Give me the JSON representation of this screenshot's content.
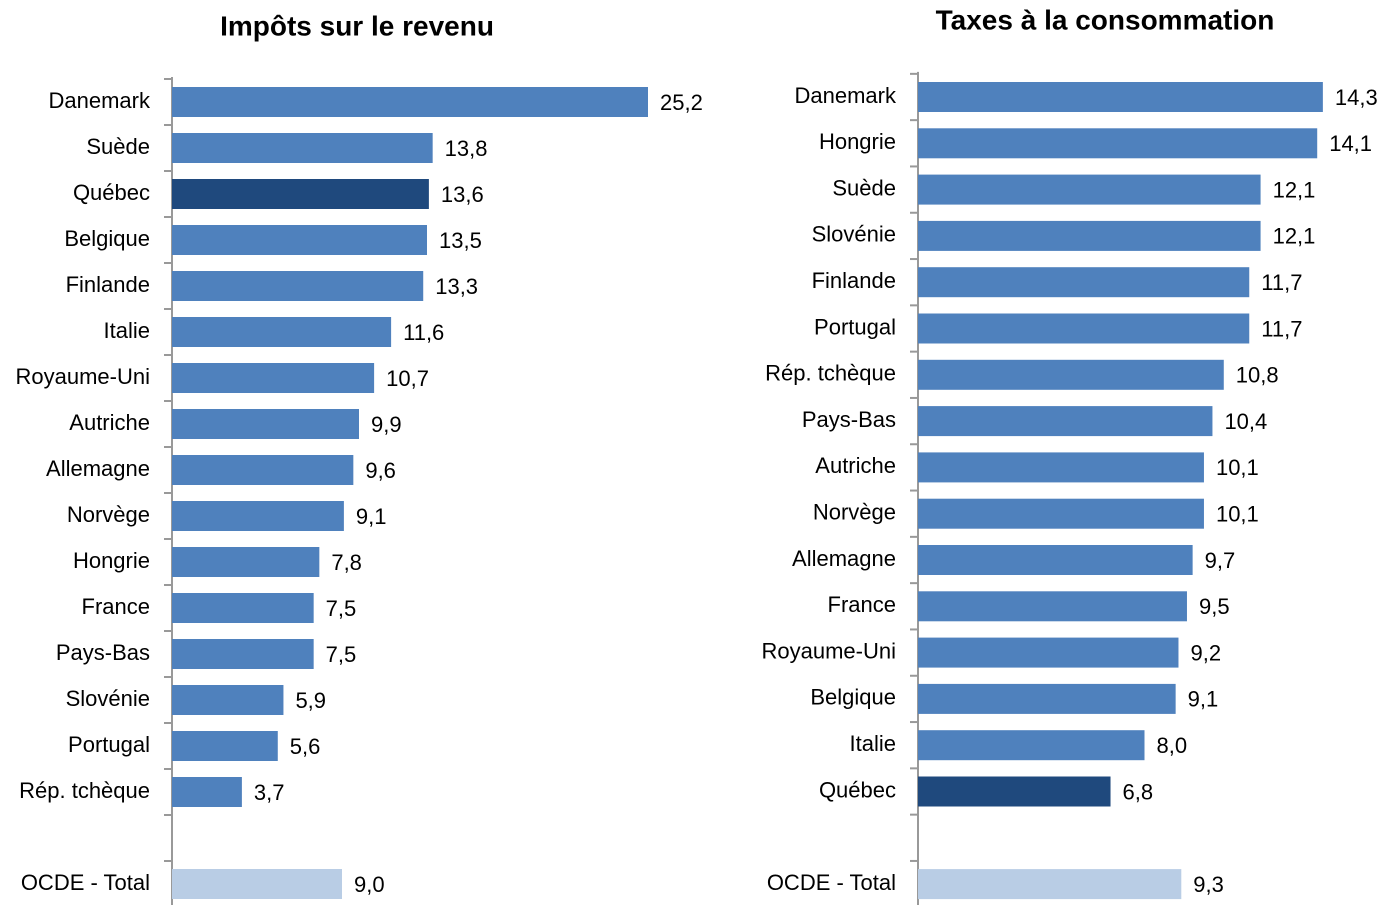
{
  "chart_data": [
    {
      "type": "bar",
      "orientation": "horizontal",
      "title": "Impôts sur le revenu",
      "categories": [
        "Danemark",
        "Suède",
        "Québec",
        "Belgique",
        "Finlande",
        "Italie",
        "Royaume-Uni",
        "Autriche",
        "Allemagne",
        "Norvège",
        "Hongrie",
        "France",
        "Pays-Bas",
        "Slovénie",
        "Portugal",
        "Rép. tchèque",
        null,
        "OCDE - Total"
      ],
      "values": [
        25.2,
        13.8,
        13.6,
        13.5,
        13.3,
        11.6,
        10.7,
        9.9,
        9.6,
        9.1,
        7.8,
        7.5,
        7.5,
        5.9,
        5.6,
        3.7,
        null,
        9.0
      ],
      "value_labels": [
        "25,2",
        "13,8",
        "13,6",
        "13,5",
        "13,3",
        "11,6",
        "10,7",
        "9,9",
        "9,6",
        "9,1",
        "7,8",
        "7,5",
        "7,5",
        "5,9",
        "5,6",
        "3,7",
        null,
        "9,0"
      ],
      "colors": [
        "#4f81bd",
        "#4f81bd",
        "#1f497d",
        "#4f81bd",
        "#4f81bd",
        "#4f81bd",
        "#4f81bd",
        "#4f81bd",
        "#4f81bd",
        "#4f81bd",
        "#4f81bd",
        "#4f81bd",
        "#4f81bd",
        "#4f81bd",
        "#4f81bd",
        "#4f81bd",
        null,
        "#b9cde5"
      ],
      "xlim": [
        0,
        27
      ]
    },
    {
      "type": "bar",
      "orientation": "horizontal",
      "title": "Taxes à la consommation",
      "categories": [
        "Danemark",
        "Hongrie",
        "Suède",
        "Slovénie",
        "Finlande",
        "Portugal",
        "Rép. tchèque",
        "Pays-Bas",
        "Autriche",
        "Norvège",
        "Allemagne",
        "France",
        "Royaume-Uni",
        "Belgique",
        "Italie",
        "Québec",
        null,
        "OCDE - Total"
      ],
      "values": [
        14.3,
        14.1,
        12.1,
        12.1,
        11.7,
        11.7,
        10.8,
        10.4,
        10.1,
        10.1,
        9.7,
        9.5,
        9.2,
        9.1,
        8.0,
        6.8,
        null,
        9.3
      ],
      "value_labels": [
        "14,3",
        "14,1",
        "12,1",
        "12,1",
        "11,7",
        "11,7",
        "10,8",
        "10,4",
        "10,1",
        "10,1",
        "9,7",
        "9,5",
        "9,2",
        "9,1",
        "8,0",
        "6,8",
        null,
        "9,3"
      ],
      "colors": [
        "#4f81bd",
        "#4f81bd",
        "#4f81bd",
        "#4f81bd",
        "#4f81bd",
        "#4f81bd",
        "#4f81bd",
        "#4f81bd",
        "#4f81bd",
        "#4f81bd",
        "#4f81bd",
        "#4f81bd",
        "#4f81bd",
        "#4f81bd",
        "#4f81bd",
        "#1f497d",
        null,
        "#b9cde5"
      ],
      "xlim": [
        0,
        16
      ]
    }
  ]
}
